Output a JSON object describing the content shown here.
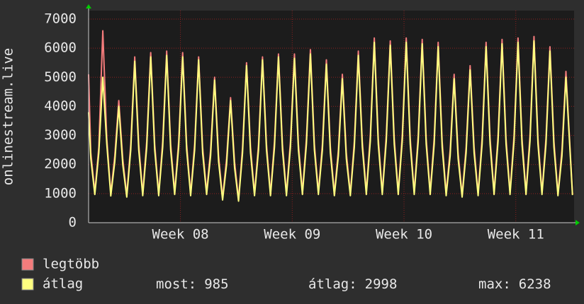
{
  "chart_data": {
    "type": "line",
    "y_label": "onlinestream.live",
    "xlim": [
      0,
      30.4
    ],
    "xticks": [
      {
        "value": 5.75,
        "label": "Week 08"
      },
      {
        "value": 12.75,
        "label": "Week 09"
      },
      {
        "value": 19.75,
        "label": "Week 10"
      },
      {
        "value": 26.75,
        "label": "Week 11"
      }
    ],
    "ylim": [
      0,
      7000
    ],
    "yticks": [
      0,
      1000,
      2000,
      3000,
      4000,
      5000,
      6000,
      7000
    ],
    "grid": true,
    "x": [
      0,
      0.14,
      0.39,
      0.64,
      0.89,
      1.14,
      1.39,
      1.64,
      1.89,
      2.14,
      2.39,
      2.64,
      2.89,
      3.14,
      3.39,
      3.64,
      3.89,
      4.14,
      4.39,
      4.64,
      4.89,
      5.14,
      5.39,
      5.64,
      5.89,
      6.14,
      6.39,
      6.64,
      6.89,
      7.14,
      7.39,
      7.64,
      7.89,
      8.14,
      8.39,
      8.64,
      8.89,
      9.14,
      9.39,
      9.64,
      9.89,
      10.14,
      10.39,
      10.64,
      10.89,
      11.14,
      11.39,
      11.64,
      11.89,
      12.14,
      12.39,
      12.64,
      12.89,
      13.14,
      13.39,
      13.64,
      13.89,
      14.14,
      14.39,
      14.64,
      14.89,
      15.14,
      15.39,
      15.64,
      15.89,
      16.14,
      16.39,
      16.64,
      16.89,
      17.14,
      17.39,
      17.64,
      17.89,
      18.14,
      18.39,
      18.64,
      18.89,
      19.14,
      19.39,
      19.64,
      19.89,
      20.14,
      20.39,
      20.64,
      20.89,
      21.14,
      21.39,
      21.64,
      21.89,
      22.14,
      22.39,
      22.64,
      22.89,
      23.14,
      23.39,
      23.64,
      23.89,
      24.14,
      24.39,
      24.64,
      24.89,
      25.14,
      25.39,
      25.64,
      25.89,
      26.14,
      26.39,
      26.64,
      26.89,
      27.14,
      27.39,
      27.64,
      27.89,
      28.14,
      28.39,
      28.64,
      28.89,
      29.14,
      29.39,
      29.64,
      29.89,
      30.3
    ],
    "series": [
      {
        "name": "legtöbb",
        "color": "#f47c7c",
        "values": [
          5100,
          2400,
          1050,
          2600,
          6600,
          2900,
          1000,
          2300,
          4200,
          2200,
          950,
          2700,
          5700,
          2700,
          1000,
          2800,
          5850,
          2700,
          1000,
          2800,
          5900,
          2700,
          1050,
          2800,
          5850,
          2700,
          1000,
          2700,
          5700,
          2600,
          1050,
          2500,
          5000,
          2300,
          850,
          2200,
          4300,
          2100,
          800,
          2600,
          5500,
          2600,
          1000,
          2700,
          5700,
          2700,
          1000,
          2800,
          5800,
          2700,
          1000,
          2800,
          5800,
          2700,
          1050,
          2900,
          5950,
          2700,
          1050,
          2700,
          5600,
          2600,
          1000,
          2500,
          5100,
          2400,
          1000,
          2800,
          5900,
          2800,
          1050,
          3000,
          6350,
          2900,
          1050,
          3000,
          6250,
          2900,
          1050,
          3000,
          6350,
          2900,
          1050,
          3000,
          6300,
          2900,
          1050,
          2900,
          6200,
          2800,
          1000,
          2500,
          5100,
          2400,
          950,
          2600,
          5400,
          2600,
          1000,
          2900,
          6200,
          2900,
          1050,
          3000,
          6300,
          2900,
          1050,
          3000,
          6350,
          2900,
          1050,
          3000,
          6400,
          2900,
          1050,
          2900,
          6050,
          2800,
          1000,
          2500,
          5200,
          1000
        ]
      },
      {
        "name": "átlag",
        "color": "#ffff80",
        "values": [
          3800,
          2200,
          970,
          2400,
          5000,
          2700,
          920,
          2100,
          4000,
          2000,
          880,
          2500,
          5550,
          2500,
          930,
          2600,
          5700,
          2500,
          930,
          2600,
          5750,
          2500,
          970,
          2600,
          5700,
          2500,
          930,
          2500,
          5600,
          2400,
          970,
          2300,
          4900,
          2100,
          780,
          2000,
          4200,
          1900,
          740,
          2400,
          5400,
          2400,
          930,
          2500,
          5600,
          2500,
          930,
          2600,
          5700,
          2500,
          930,
          2600,
          5650,
          2500,
          970,
          2700,
          5800,
          2500,
          970,
          2500,
          5450,
          2400,
          930,
          2300,
          4950,
          2200,
          930,
          2600,
          5750,
          2600,
          970,
          2800,
          6200,
          2700,
          970,
          2800,
          6100,
          2700,
          970,
          2800,
          6200,
          2700,
          970,
          2800,
          6150,
          2700,
          970,
          2700,
          6050,
          2600,
          930,
          2300,
          4950,
          2200,
          880,
          2400,
          5250,
          2400,
          930,
          2700,
          6050,
          2700,
          970,
          2800,
          6150,
          2700,
          970,
          2800,
          6200,
          2700,
          970,
          2800,
          6250,
          2700,
          970,
          2700,
          5900,
          2600,
          930,
          2300,
          5000,
          950
        ]
      }
    ],
    "stats": [
      {
        "label": "most:",
        "value": 985
      },
      {
        "label": "átlag:",
        "value": 2998
      },
      {
        "label": "max:",
        "value": 6238
      }
    ]
  }
}
